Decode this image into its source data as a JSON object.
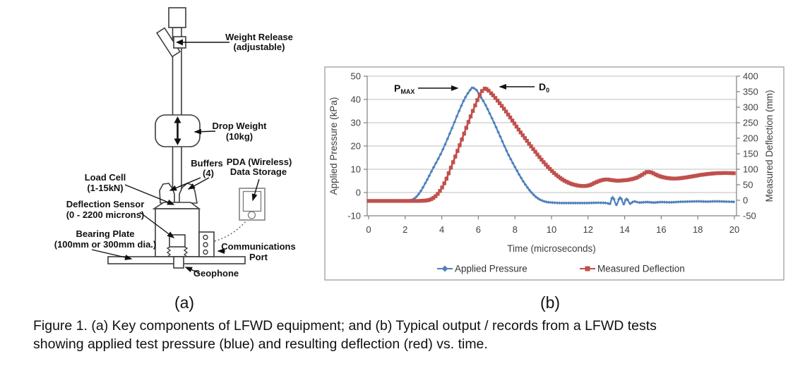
{
  "figure": {
    "panel_a_label": "(a)",
    "panel_b_label": "(b)",
    "caption_line1": "Figure 1. (a) Key components of LFWD equipment; and (b) Typical output / records from a LFWD tests",
    "caption_line2": "showing applied test pressure (blue) and resulting deflection (red) vs. time."
  },
  "diagram": {
    "labels": {
      "weight_release": [
        "Weight Release",
        "(adjustable)"
      ],
      "drop_weight": [
        "Drop Weight",
        "(10kg)"
      ],
      "buffers": [
        "Buffers",
        "(4)"
      ],
      "pda": [
        "PDA (Wireless)",
        "Data Storage"
      ],
      "load_cell": [
        "Load Cell",
        "(1-15kN)"
      ],
      "deflection_sensor": [
        "Deflection Sensor",
        "(0 - 2200 microns)"
      ],
      "bearing_plate": [
        "Bearing Plate",
        "(100mm or 300mm dia.)"
      ],
      "communications_port": [
        "Communications",
        "Port"
      ],
      "geophone": "Geophone"
    }
  },
  "chart_data": {
    "type": "line",
    "xlabel": "Time (microseconds)",
    "ylabel_left": "Applied Pressure (kPa)",
    "ylabel_right": "Measured Deflection (mm)",
    "xlim": [
      0,
      20
    ],
    "ylim_left": [
      -10,
      50
    ],
    "ylim_right": [
      -50,
      400
    ],
    "x_ticks": [
      0,
      2,
      4,
      6,
      8,
      10,
      12,
      14,
      16,
      18,
      20
    ],
    "left_ticks": [
      50,
      40,
      30,
      20,
      10,
      0,
      -10
    ],
    "right_ticks": [
      400,
      350,
      300,
      250,
      200,
      150,
      100,
      50,
      0,
      -50
    ],
    "grid": "horizontal",
    "legend_position": "bottom",
    "annotations": [
      {
        "main": "P",
        "sub": "MAX",
        "points_to": "pressure peak"
      },
      {
        "main": "D",
        "sub": "0",
        "points_to": "deflection peak"
      }
    ],
    "series": [
      {
        "name": "Applied Pressure",
        "axis": "left",
        "units": "kPa",
        "color": "#4F81BD",
        "marker": "diamond",
        "peak": {
          "t": 5.7,
          "value": 45
        },
        "points": [
          [
            0,
            -3.5
          ],
          [
            1,
            -3.5
          ],
          [
            1.8,
            -3.5
          ],
          [
            2.2,
            -3.4
          ],
          [
            2.5,
            -2.6
          ],
          [
            2.8,
            0
          ],
          [
            3.1,
            4
          ],
          [
            3.5,
            10
          ],
          [
            4,
            17.5
          ],
          [
            4.5,
            26.5
          ],
          [
            5,
            36
          ],
          [
            5.3,
            41
          ],
          [
            5.6,
            44.5
          ],
          [
            5.7,
            45
          ],
          [
            5.9,
            44
          ],
          [
            6.1,
            41.5
          ],
          [
            6.4,
            37.5
          ],
          [
            6.8,
            31
          ],
          [
            7.2,
            24
          ],
          [
            7.6,
            17
          ],
          [
            8,
            11
          ],
          [
            8.4,
            5.5
          ],
          [
            8.8,
            1
          ],
          [
            9.2,
            -2.2
          ],
          [
            9.6,
            -3.8
          ],
          [
            10,
            -4.3
          ],
          [
            10.5,
            -4.5
          ],
          [
            11,
            -4.5
          ],
          [
            11.5,
            -4.5
          ],
          [
            12,
            -4.5
          ],
          [
            12.5,
            -4.4
          ],
          [
            13,
            -4.5
          ],
          [
            13.2,
            -4.8
          ],
          [
            13.35,
            -1.9
          ],
          [
            13.55,
            -5.3
          ],
          [
            13.75,
            -2
          ],
          [
            13.95,
            -5
          ],
          [
            14.1,
            -2.6
          ],
          [
            14.3,
            -4.8
          ],
          [
            14.5,
            -3.8
          ],
          [
            14.8,
            -4.3
          ],
          [
            15.2,
            -4.1
          ],
          [
            15.6,
            -4.3
          ],
          [
            16,
            -4.1
          ],
          [
            16.5,
            -4.2
          ],
          [
            17,
            -4
          ],
          [
            17.5,
            -3.9
          ],
          [
            18,
            -3.8
          ],
          [
            18.5,
            -3.9
          ],
          [
            19,
            -3.8
          ],
          [
            19.5,
            -3.9
          ],
          [
            20,
            -4
          ]
        ]
      },
      {
        "name": "Measured Deflection",
        "axis": "right",
        "units": "mm",
        "color": "#C0504D",
        "marker": "square",
        "peak": {
          "t": 6.35,
          "value": 360
        },
        "points": [
          [
            0,
            -2
          ],
          [
            1,
            -2
          ],
          [
            2,
            -2
          ],
          [
            2.6,
            -2
          ],
          [
            3,
            -1.5
          ],
          [
            3.3,
            1
          ],
          [
            3.6,
            10
          ],
          [
            3.9,
            30
          ],
          [
            4.2,
            62
          ],
          [
            4.5,
            105
          ],
          [
            4.8,
            150
          ],
          [
            5.1,
            196
          ],
          [
            5.4,
            243
          ],
          [
            5.7,
            288
          ],
          [
            6,
            330
          ],
          [
            6.2,
            352
          ],
          [
            6.35,
            360
          ],
          [
            6.5,
            356
          ],
          [
            6.7,
            345
          ],
          [
            7,
            325
          ],
          [
            7.4,
            295
          ],
          [
            7.8,
            262
          ],
          [
            8.2,
            228
          ],
          [
            8.6,
            196
          ],
          [
            9,
            165
          ],
          [
            9.4,
            135
          ],
          [
            9.8,
            108
          ],
          [
            10.2,
            85
          ],
          [
            10.6,
            67
          ],
          [
            11,
            55
          ],
          [
            11.4,
            48
          ],
          [
            11.8,
            46
          ],
          [
            12.1,
            49
          ],
          [
            12.4,
            57
          ],
          [
            12.7,
            64
          ],
          [
            13,
            67
          ],
          [
            13.3,
            65
          ],
          [
            13.6,
            63
          ],
          [
            13.9,
            64
          ],
          [
            14.3,
            67
          ],
          [
            14.7,
            74
          ],
          [
            15,
            84
          ],
          [
            15.2,
            91
          ],
          [
            15.45,
            90
          ],
          [
            15.7,
            83
          ],
          [
            16,
            76
          ],
          [
            16.3,
            72
          ],
          [
            16.7,
            70
          ],
          [
            17,
            71
          ],
          [
            17.4,
            74
          ],
          [
            17.8,
            78
          ],
          [
            18.2,
            82
          ],
          [
            18.6,
            85
          ],
          [
            19,
            87
          ],
          [
            19.5,
            88
          ],
          [
            20,
            87
          ]
        ]
      }
    ]
  }
}
